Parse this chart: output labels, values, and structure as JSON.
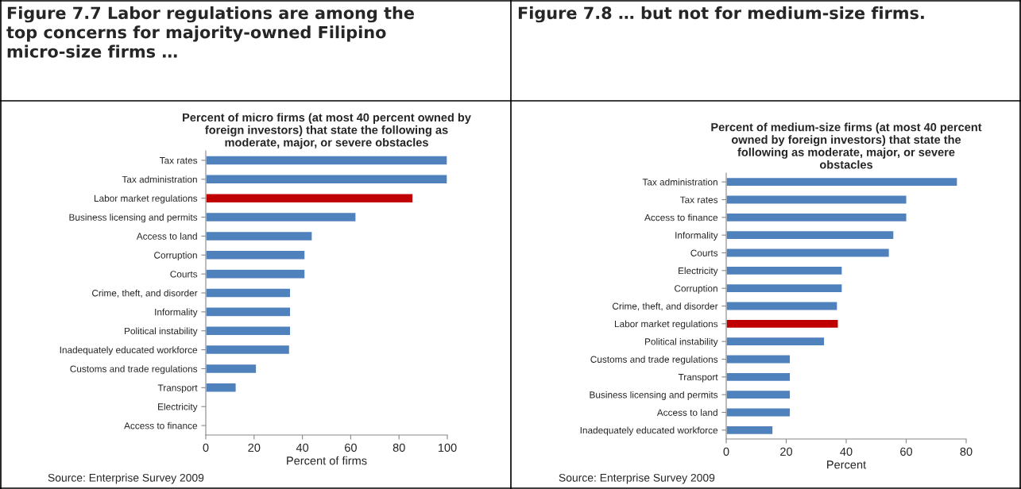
{
  "chart_data": [
    {
      "type": "bar",
      "orientation": "horizontal",
      "title": "Figure 7.7 Labor regulations are among the\ntop concerns for majority-owned Filipino\nmicro-size firms …",
      "subtitle": "Percent of micro firms (at most 40 percent owned by\nforeign investors) that state the following as\nmoderate, major, or severe obstacles",
      "xlabel": "Percent of firms",
      "categories": [
        "Tax rates",
        "Tax administration",
        "Labor market regulations",
        "Business licensing and permits",
        "Access to land",
        "Corruption",
        "Courts",
        "Crime, theft, and disorder",
        "Informality",
        "Political instability",
        "Inadequately educated workforce",
        "Customs and trade regulations",
        "Transport",
        "Electricity",
        "Access to finance"
      ],
      "values": [
        100,
        100,
        85.8,
        62.2,
        44.1,
        41.1,
        41.1,
        35.1,
        35.1,
        35.1,
        34.7,
        21,
        12.6,
        0,
        0
      ],
      "colors": [
        "#4f81bd",
        "#4f81bd",
        "#c00000",
        "#4f81bd",
        "#4f81bd",
        "#4f81bd",
        "#4f81bd",
        "#4f81bd",
        "#4f81bd",
        "#4f81bd",
        "#4f81bd",
        "#4f81bd",
        "#4f81bd",
        null,
        null
      ],
      "xlim": [
        0,
        100
      ],
      "xticks": [
        0,
        20,
        40,
        60,
        80,
        100
      ],
      "grid": false,
      "legend": false,
      "annotations": [
        "Source: Enterprise Survey 2009"
      ]
    },
    {
      "type": "bar",
      "orientation": "horizontal",
      "title": "Figure 7.8 … but not for medium-size firms.",
      "subtitle": "Percent of medium-size firms (at most 40 percent\nowned by foreign investors) that state the\nfollowing as moderate, major, or severe\nobstacles",
      "xlabel": "Percent",
      "categories": [
        "Tax administration",
        "Tax rates",
        "Access to finance",
        "Informality",
        "Courts",
        "Electricity",
        "Corruption",
        "Crime, theft, and disorder",
        "Labor market regulations",
        "Political instability",
        "Customs and trade regulations",
        "Transport",
        "Business licensing and permits",
        "Access to land",
        "Inadequately educated workforce"
      ],
      "values": [
        77.1,
        60.2,
        60.2,
        55.9,
        54.4,
        38.7,
        38.7,
        37.1,
        37.4,
        32.8,
        21.4,
        21.4,
        21.4,
        21.4,
        15.6
      ],
      "colors": [
        "#4f81bd",
        "#4f81bd",
        "#4f81bd",
        "#4f81bd",
        "#4f81bd",
        "#4f81bd",
        "#4f81bd",
        "#4f81bd",
        "#c00000",
        "#4f81bd",
        "#4f81bd",
        "#4f81bd",
        "#4f81bd",
        "#4f81bd",
        "#4f81bd"
      ],
      "xlim": [
        0,
        80
      ],
      "xticks": [
        0,
        20,
        40,
        60,
        80
      ],
      "grid": false,
      "legend": false,
      "annotations": [
        "Source: Enterprise Survey 2009"
      ]
    }
  ]
}
